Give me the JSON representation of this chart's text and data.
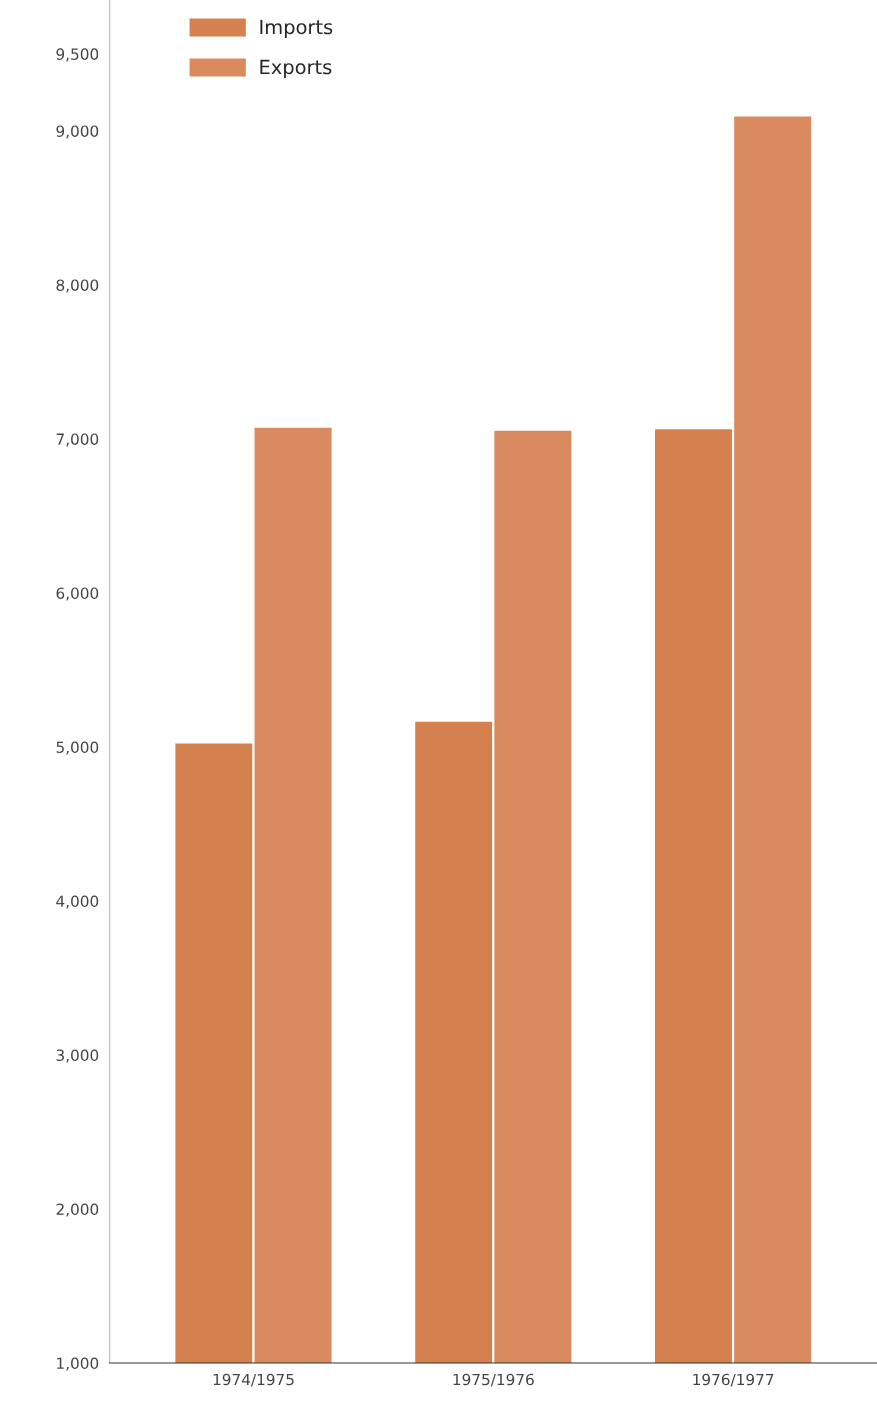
{
  "chart_data": {
    "type": "bar",
    "categories": [
      "1974/1975",
      "1975/1976",
      "1976/1977"
    ],
    "series": [
      {
        "name": "Imports",
        "color": "#d4804f",
        "values": [
          5030,
          5170,
          7070
        ]
      },
      {
        "name": "Exports",
        "color": "#d98a5f",
        "values": [
          7080,
          7060,
          9100
        ]
      }
    ],
    "ylim": [
      1000,
      9850
    ],
    "yticks": [
      {
        "value": 1000,
        "label": "1,000"
      },
      {
        "value": 2000,
        "label": "2,000"
      },
      {
        "value": 3000,
        "label": "3,000"
      },
      {
        "value": 4000,
        "label": "4,000"
      },
      {
        "value": 5000,
        "label": "5,000"
      },
      {
        "value": 6000,
        "label": "6,000"
      },
      {
        "value": 7000,
        "label": "7,000"
      },
      {
        "value": 8000,
        "label": "8,000"
      },
      {
        "value": 9000,
        "label": "9,000"
      },
      {
        "value": 9500,
        "label": "9,500"
      }
    ],
    "grid": false,
    "legend": "top left"
  }
}
